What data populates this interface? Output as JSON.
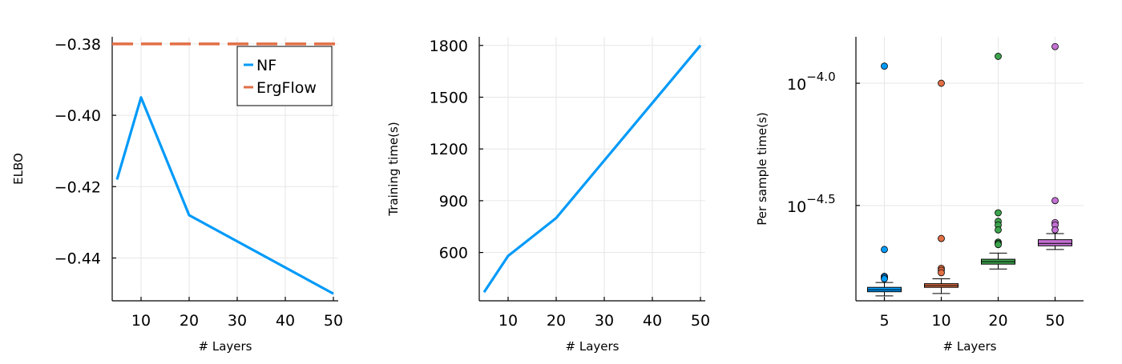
{
  "colors": {
    "blue": "#009af9",
    "orange": "#e26f46",
    "green": "#3da44d",
    "purple": "#c371d2"
  },
  "chart_data": [
    {
      "type": "line",
      "xlabel": "# Layers",
      "ylabel": "ELBO",
      "xlim": [
        4,
        51
      ],
      "ylim": [
        -0.452,
        -0.378
      ],
      "xticks": [
        10,
        20,
        30,
        40,
        50
      ],
      "yticks": [
        -0.38,
        -0.4,
        -0.42,
        -0.44
      ],
      "ytick_labels": [
        "−0.38",
        "−0.40",
        "−0.42",
        "−0.44"
      ],
      "grid": true,
      "legend_position": "top-right",
      "series": [
        {
          "name": "NF",
          "color": "#009af9",
          "style": "solid",
          "x": [
            5,
            10,
            20,
            50
          ],
          "y": [
            -0.418,
            -0.395,
            -0.428,
            -0.45
          ]
        },
        {
          "name": "ErgFlow",
          "color": "#e26f46",
          "style": "dashed",
          "hline": -0.38
        }
      ]
    },
    {
      "type": "line",
      "xlabel": "# Layers",
      "ylabel": "Training time(s)",
      "xlim": [
        4,
        51
      ],
      "ylim": [
        320,
        1850
      ],
      "xticks": [
        10,
        20,
        30,
        40,
        50
      ],
      "yticks": [
        600,
        900,
        1200,
        1500,
        1800
      ],
      "ytick_labels": [
        "600",
        "900",
        "1200",
        "1500",
        "1800"
      ],
      "grid": true,
      "series": [
        {
          "color": "#009af9",
          "style": "solid",
          "x": [
            5,
            10,
            20,
            50
          ],
          "y": [
            370,
            580,
            800,
            1800
          ]
        }
      ]
    },
    {
      "type": "box",
      "xlabel": "# Layers",
      "ylabel": "Per sample time(s)",
      "categories": [
        "5",
        "10",
        "20",
        "50"
      ],
      "y_scale": "log10",
      "ylim_log10": [
        -4.89,
        -3.81
      ],
      "yticks_log10": [
        -4.0,
        -4.5
      ],
      "ytick_labels": [
        {
          "base": "10",
          "exp": "−4.0"
        },
        {
          "base": "10",
          "exp": "−4.5"
        }
      ],
      "grid": true,
      "boxes": [
        {
          "category": "5",
          "color": "#009af9",
          "whisker_low": -4.87,
          "q1": -4.853,
          "median": -4.845,
          "q3": -4.835,
          "whisker_high": -4.815,
          "outliers": [
            -3.93,
            -4.68,
            -4.79,
            -4.795,
            -4.8
          ]
        },
        {
          "category": "10",
          "color": "#e26f46",
          "whisker_low": -4.86,
          "q1": -4.835,
          "median": -4.828,
          "q3": -4.82,
          "whisker_high": -4.8,
          "outliers": [
            -4.0,
            -4.635,
            -4.757,
            -4.765,
            -4.775
          ]
        },
        {
          "category": "20",
          "color": "#3da44d",
          "whisker_low": -4.76,
          "q1": -4.74,
          "median": -4.73,
          "q3": -4.72,
          "whisker_high": -4.695,
          "outliers": [
            -3.89,
            -4.53,
            -4.565,
            -4.58,
            -4.6,
            -4.65,
            -4.655,
            -4.66
          ]
        },
        {
          "category": "50",
          "color": "#c371d2",
          "whisker_low": -4.68,
          "q1": -4.665,
          "median": -4.655,
          "q3": -4.64,
          "whisker_high": -4.615,
          "outliers": [
            -3.85,
            -4.48,
            -4.57,
            -4.58,
            -4.6
          ]
        }
      ]
    }
  ]
}
